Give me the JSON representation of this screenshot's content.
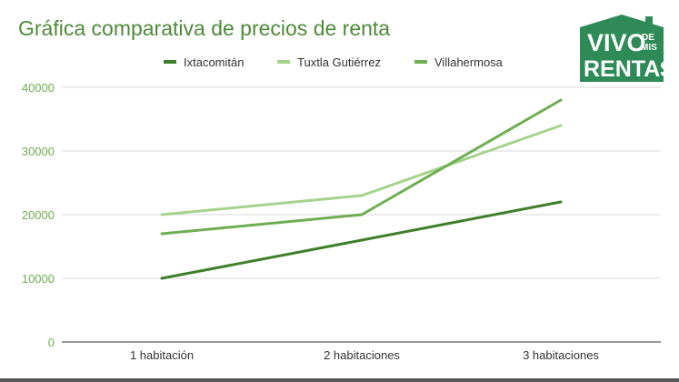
{
  "chart_data": {
    "type": "line",
    "title": "Gráfica comparativa de precios de renta",
    "categories": [
      "1 habitación",
      "2 habitaciones",
      "3 habitaciones"
    ],
    "series": [
      {
        "name": "Ixtacomitán",
        "color": "#3f7f2a",
        "values": [
          10000,
          16000,
          22000
        ]
      },
      {
        "name": "Tuxtla Gutiérrez",
        "color": "#a5d38c",
        "values": [
          20000,
          23000,
          34000
        ]
      },
      {
        "name": "Villahermosa",
        "color": "#6fae52",
        "values": [
          17000,
          20000,
          38000
        ]
      }
    ],
    "yticks": [
      "0",
      "10000",
      "20000",
      "30000",
      "40000"
    ],
    "ylim": [
      0,
      40000
    ],
    "grid": true,
    "legend": "top-center",
    "tick_color": "#6fae52",
    "grid_color": "#d9d9d9"
  },
  "logo": {
    "line1": "VIVO",
    "small_top": "DE",
    "small_bottom": "MIS",
    "line2": "RENTA$",
    "color": "#2e8b57"
  }
}
